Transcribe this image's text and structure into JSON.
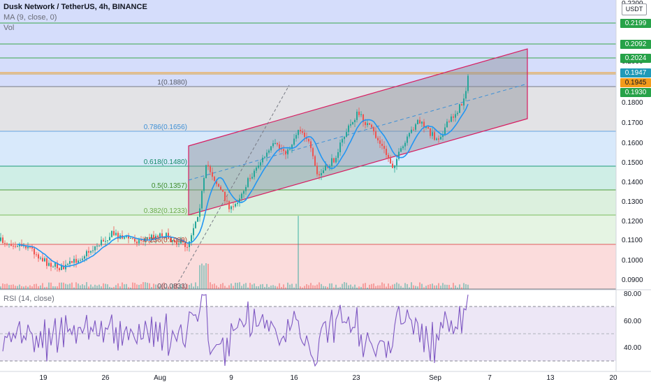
{
  "header": {
    "title": "Dusk Network / TetherUS, 4h, BINANCE",
    "ma_label": "MA (9, close, 0)",
    "vol_label": "Vol"
  },
  "currency_button": "USDT",
  "price_scale": {
    "ticks": [
      "0.2200",
      "0.2000",
      "0.1800",
      "0.1700",
      "0.1600",
      "0.1500",
      "0.1400",
      "0.1300",
      "0.1200",
      "0.1100",
      "0.1000",
      "0.0900"
    ],
    "badges": [
      {
        "value": "0.2199",
        "color": "#26a248"
      },
      {
        "value": "0.2092",
        "color": "#26a248"
      },
      {
        "value": "0.2024",
        "color": "#26a248"
      },
      {
        "value": "0.1947",
        "color": "#1f9ab8"
      },
      {
        "value": "0.1945",
        "color": "#f39b1b"
      },
      {
        "value": "0.1930",
        "color": "#26a248"
      }
    ]
  },
  "fib_levels": [
    {
      "label": "1(0.1880)",
      "color": "#555963"
    },
    {
      "label": "0.786(0.1656)",
      "color": "#3c8fd6"
    },
    {
      "label": "0.618(0.1480)",
      "color": "#138a67"
    },
    {
      "label": "0.5(0.1357)",
      "color": "#3d8a2a"
    },
    {
      "label": "0.382(0.1233)",
      "color": "#6bab4a"
    },
    {
      "label": "0.236(0.1080)",
      "color": "#c0392b"
    },
    {
      "label": "0(0.0833)",
      "color": "#555963"
    }
  ],
  "rsi": {
    "label": "RSI (14, close)",
    "ticks": [
      "80.00",
      "60.00",
      "40.00"
    ]
  },
  "time_axis": [
    "19",
    "26",
    "Aug",
    "9",
    "16",
    "23",
    "Sep",
    "7",
    "13",
    "20"
  ],
  "colors": {
    "up": "#26a69a",
    "down": "#ef5350",
    "ma": "#2196f3",
    "rsi": "#7e57c2",
    "channel": "#d81b60"
  }
}
